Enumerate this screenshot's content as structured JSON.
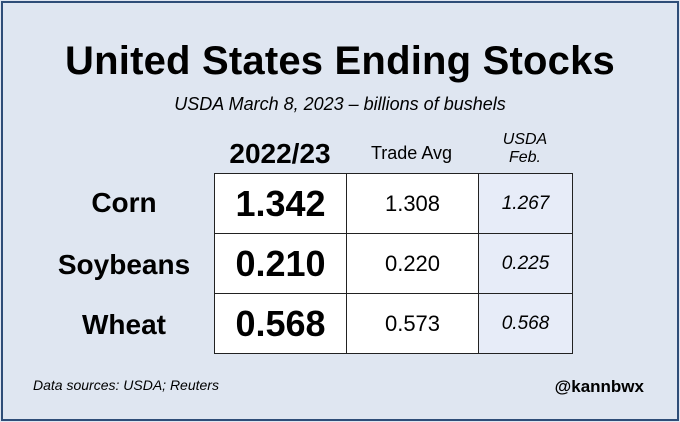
{
  "title": "United States Ending Stocks",
  "subtitle": "USDA March 8, 2023 – billions of bushels",
  "columns": {
    "main": "2022/23",
    "trade": "Trade Avg",
    "usda_line1": "USDA",
    "usda_line2": "Feb."
  },
  "rows": [
    {
      "label": "Corn",
      "value": "1.342",
      "trade": "1.308",
      "usda": "1.267"
    },
    {
      "label": "Soybeans",
      "value": "0.210",
      "trade": "0.220",
      "usda": "0.225"
    },
    {
      "label": "Wheat",
      "value": "0.568",
      "trade": "0.573",
      "usda": "0.568"
    }
  ],
  "footer": {
    "source": "Data sources: USDA; Reuters",
    "handle": "@kannbwx"
  },
  "colors": {
    "background": "#dfe6f1",
    "border": "#2e4d78",
    "usda_cell": "#e7ecf8"
  }
}
